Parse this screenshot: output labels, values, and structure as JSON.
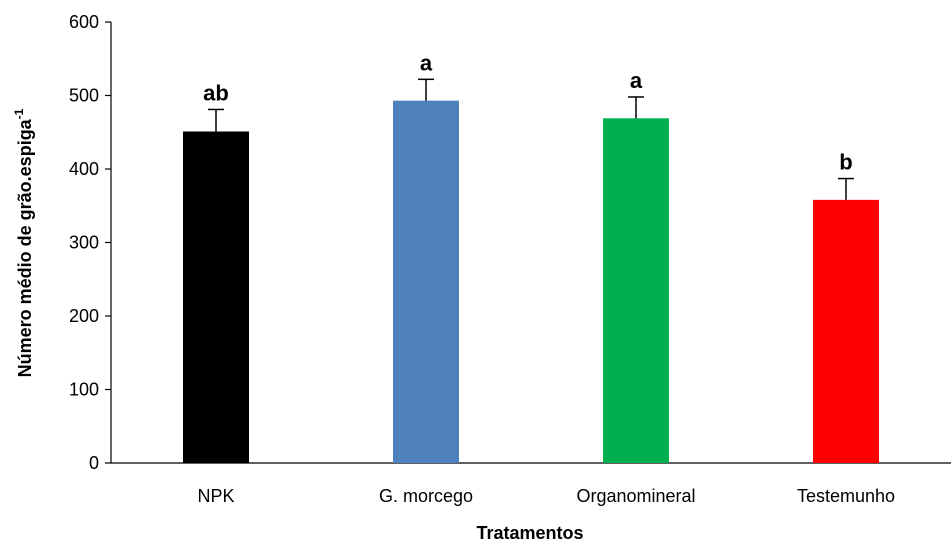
{
  "chart_data": {
    "type": "bar",
    "categories": [
      "NPK",
      "G. morcego",
      "Organomineral",
      "Testemunho"
    ],
    "values": [
      451,
      493,
      469,
      358
    ],
    "error_plus": [
      30,
      29,
      29,
      29
    ],
    "significance_letters": [
      "ab",
      "a",
      "a",
      "b"
    ],
    "colors": [
      "#000000",
      "#4F81BD",
      "#00B050",
      "#FF0000"
    ],
    "xlabel": "Tratamentos",
    "ylabel_main": "Número médio de grão.espiga",
    "ylabel_superscript": "-1",
    "ylim": [
      0,
      600
    ],
    "yticks": [
      0,
      100,
      200,
      300,
      400,
      500,
      600
    ],
    "grid": false,
    "legend": "none"
  }
}
